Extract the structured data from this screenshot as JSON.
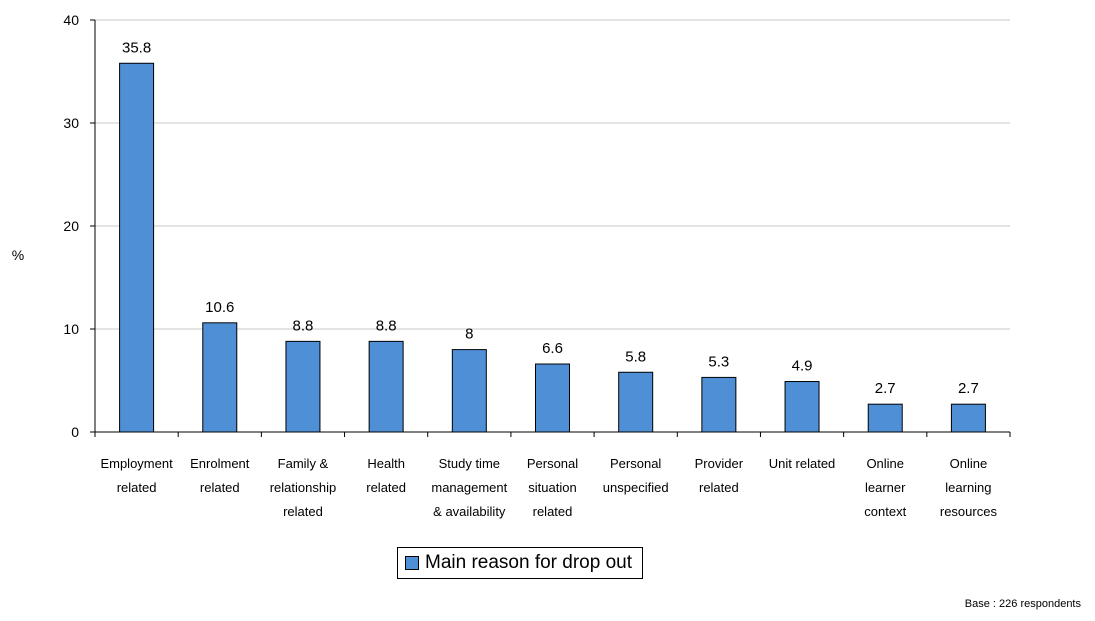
{
  "chart_data": {
    "type": "bar",
    "ylabel": "%",
    "ylim": [
      0,
      40
    ],
    "yticks": [
      "0",
      "10",
      "20",
      "30",
      "40"
    ],
    "grid": true,
    "categories": [
      [
        "Employment",
        "related"
      ],
      [
        "Enrolment",
        "related"
      ],
      [
        "Family &",
        "relationship",
        "related"
      ],
      [
        "Health",
        "related"
      ],
      [
        "Study time",
        "management",
        "& availability"
      ],
      [
        "Personal",
        "situation",
        "related"
      ],
      [
        "Personal",
        "unspecified"
      ],
      [
        "Provider",
        "related"
      ],
      [
        "Unit related"
      ],
      [
        "Online",
        "learner",
        "context"
      ],
      [
        "Online",
        "learning",
        "resources"
      ]
    ],
    "series": [
      {
        "name": "Main reason for drop out",
        "values": [
          35.8,
          10.6,
          8.8,
          8.8,
          8,
          6.6,
          5.8,
          5.3,
          4.9,
          2.7,
          2.7
        ],
        "labels": [
          "35.8",
          "10.6",
          "8.8",
          "8.8",
          "8",
          "6.6",
          "5.8",
          "5.3",
          "4.9",
          "2.7",
          "2.7"
        ],
        "color": "#4f8fd6"
      }
    ],
    "legend": "bottom-center"
  },
  "footnote": "Base : 226 respondents"
}
